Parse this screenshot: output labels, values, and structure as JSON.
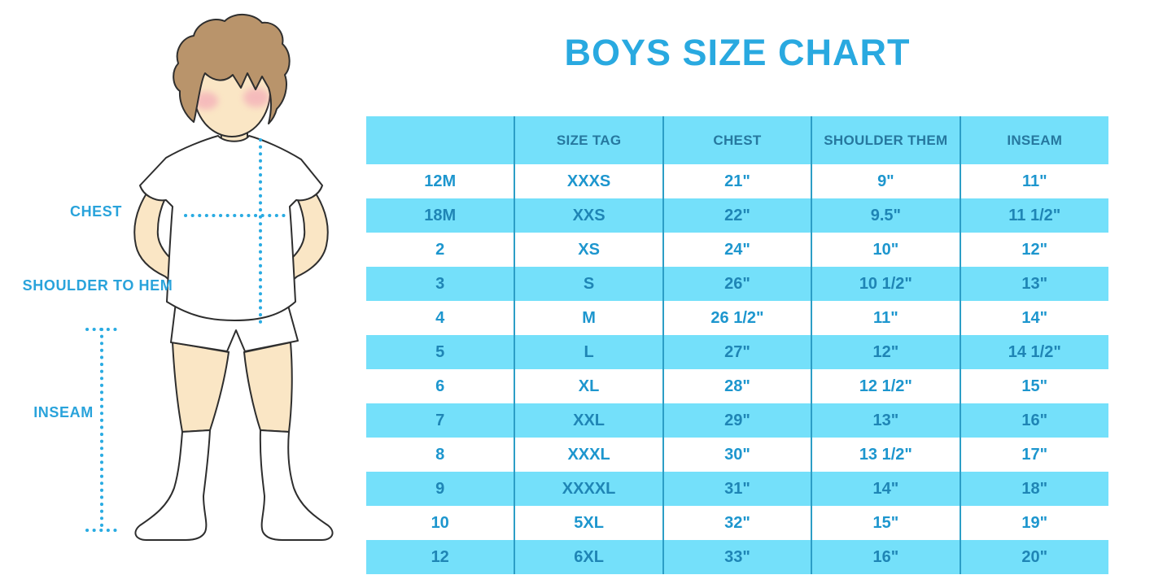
{
  "title": "BOYS SIZE CHART",
  "colors": {
    "title_blue": "#29A9E0",
    "label_blue": "#29A3DB",
    "header_bg": "#74E0FA",
    "header_text": "#26789F",
    "row_text": "#1D96CE",
    "row_alt_bg": "#74E0FA",
    "row_alt_text": "#1F85B5",
    "divider": "#2C9EC6",
    "dotted_line": "#29ABE2",
    "skin": "#FAE6C5",
    "hair": "#B9946B",
    "blush": "#F2A0B5",
    "outline": "#2e2e2e",
    "garment_white": "#FFFFFF"
  },
  "figure": {
    "illustration": "boy-in-white-tshirt-shorts-and-knee-socks",
    "labels": [
      {
        "text": "CHEST"
      },
      {
        "text": "SHOULDER TO HEM"
      },
      {
        "text": "INSEAM"
      }
    ]
  },
  "chart_data": {
    "type": "table",
    "title": "BOYS SIZE CHART",
    "columns": [
      "",
      "SIZE TAG",
      "CHEST",
      "SHOULDER THEM",
      "INSEAM"
    ],
    "rows": [
      [
        "12M",
        "XXXS",
        "21\"",
        "9\"",
        "11\""
      ],
      [
        "18M",
        "XXS",
        "22\"",
        "9.5\"",
        "11 1/2\""
      ],
      [
        "2",
        "XS",
        "24\"",
        "10\"",
        "12\""
      ],
      [
        "3",
        "S",
        "26\"",
        "10 1/2\"",
        "13\""
      ],
      [
        "4",
        "M",
        "26 1/2\"",
        "11\"",
        "14\""
      ],
      [
        "5",
        "L",
        "27\"",
        "12\"",
        "14 1/2\""
      ],
      [
        "6",
        "XL",
        "28\"",
        "12 1/2\"",
        "15\""
      ],
      [
        "7",
        "XXL",
        "29\"",
        "13\"",
        "16\""
      ],
      [
        "8",
        "XXXL",
        "30\"",
        "13 1/2\"",
        "17\""
      ],
      [
        "9",
        "XXXXL",
        "31\"",
        "14\"",
        "18\""
      ],
      [
        "10",
        "5XL",
        "32\"",
        "15\"",
        "19\""
      ],
      [
        "12",
        "6XL",
        "33\"",
        "16\"",
        "20\""
      ]
    ],
    "layout": {
      "striping": "alternating white and cyan rows, first row white",
      "gridlines": "vertical only"
    }
  }
}
